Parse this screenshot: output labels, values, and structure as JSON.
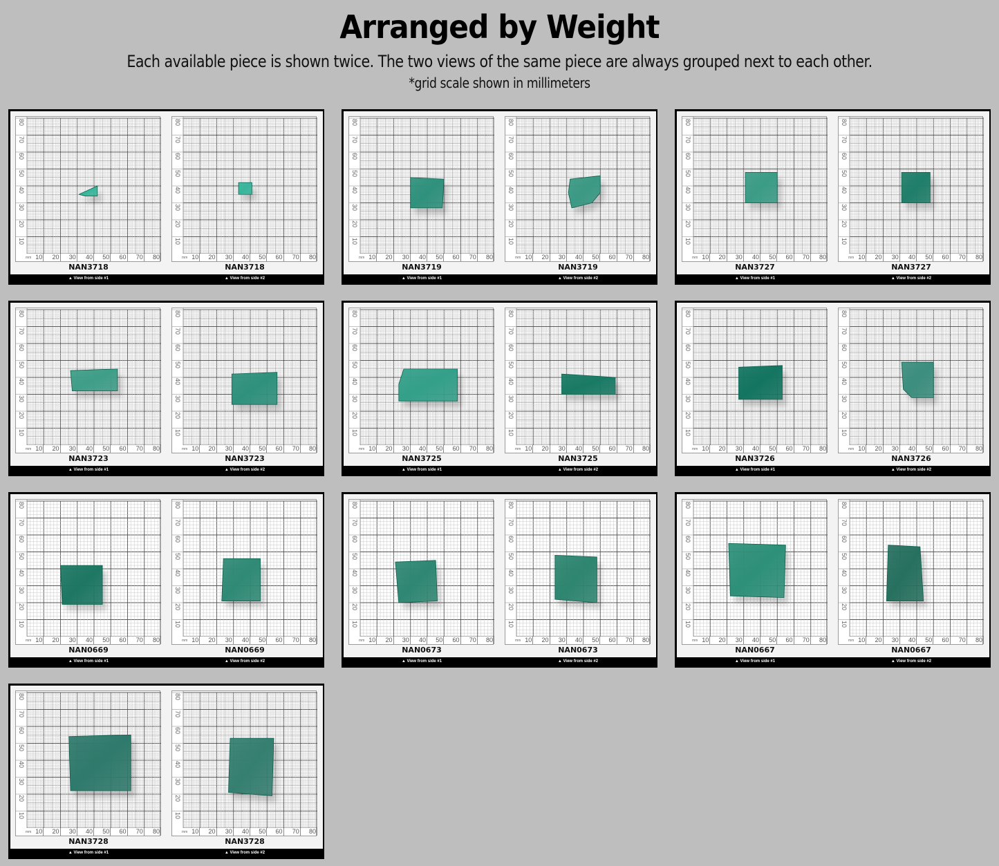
{
  "header": {
    "title": "Arranged by Weight",
    "subtitle": "Each available piece is shown twice. The two views of the same piece are always grouped next to each other.",
    "note": "*grid scale shown in millimeters"
  },
  "grid": {
    "unit_label": "mm",
    "x_ticks": [
      "10",
      "20",
      "30",
      "40",
      "50",
      "60",
      "70",
      "80"
    ],
    "y_ticks": [
      "80",
      "70",
      "60",
      "50",
      "40",
      "30",
      "20",
      "10"
    ]
  },
  "captions": {
    "side1": "▲ View from side #1",
    "side2": "▲ View from side #2"
  },
  "colors": {
    "background": "#bebebe",
    "panel_border": "#000000",
    "stone_light": "#3fa58f",
    "stone_mid": "#2a8c78",
    "stone_dark": "#14705d"
  },
  "pieces": [
    {
      "id": "NAN3718",
      "fine_grid": true,
      "view1": {
        "poly": [
          [
            31,
            35
          ],
          [
            42,
            40
          ],
          [
            42,
            34
          ],
          [
            35,
            34
          ]
        ],
        "color": "#3ab59c"
      },
      "view2": {
        "poly": [
          [
            33,
            42
          ],
          [
            41,
            42
          ],
          [
            41,
            35
          ],
          [
            33,
            35
          ]
        ],
        "color": "#3ab59c"
      }
    },
    {
      "id": "NAN3719",
      "fine_grid": true,
      "view1": {
        "poly": [
          [
            30,
            45
          ],
          [
            50,
            44
          ],
          [
            49,
            27
          ],
          [
            30,
            27
          ]
        ],
        "color": "#2f917c"
      },
      "view2": {
        "poly": [
          [
            32,
            44
          ],
          [
            50,
            46
          ],
          [
            50,
            36
          ],
          [
            45,
            30
          ],
          [
            33,
            27
          ],
          [
            31,
            36
          ]
        ],
        "color": "#3b9984"
      }
    },
    {
      "id": "NAN3727",
      "fine_grid": true,
      "view1": {
        "poly": [
          [
            31,
            48
          ],
          [
            50,
            48
          ],
          [
            50,
            30
          ],
          [
            31,
            30
          ]
        ],
        "color": "#3b9c86"
      },
      "view2": {
        "poly": [
          [
            31,
            48
          ],
          [
            48,
            48
          ],
          [
            48,
            30
          ],
          [
            31,
            30
          ]
        ],
        "color": "#1f7e69"
      }
    },
    {
      "id": "NAN3723",
      "fine_grid": true,
      "view1": {
        "poly": [
          [
            26,
            44
          ],
          [
            54,
            45
          ],
          [
            54,
            32
          ],
          [
            27,
            32
          ]
        ],
        "color": "#3f9e88"
      },
      "view2": {
        "poly": [
          [
            29,
            42
          ],
          [
            56,
            43
          ],
          [
            56,
            24
          ],
          [
            29,
            24
          ]
        ],
        "color": "#2f917c"
      }
    },
    {
      "id": "NAN3725",
      "fine_grid": true,
      "view1": {
        "poly": [
          [
            26,
            45
          ],
          [
            58,
            45
          ],
          [
            58,
            26
          ],
          [
            23,
            26
          ],
          [
            23,
            36
          ]
        ],
        "color": "#34a08a"
      },
      "view2": {
        "poly": [
          [
            27,
            42
          ],
          [
            59,
            40
          ],
          [
            59,
            30
          ],
          [
            27,
            30
          ]
        ],
        "color": "#197a64"
      }
    },
    {
      "id": "NAN3726",
      "fine_grid": true,
      "view1": {
        "poly": [
          [
            27,
            46
          ],
          [
            53,
            47
          ],
          [
            53,
            27
          ],
          [
            27,
            27
          ]
        ],
        "color": "#137560"
      },
      "view2": {
        "poly": [
          [
            31,
            49
          ],
          [
            50,
            49
          ],
          [
            50,
            28
          ],
          [
            37,
            28
          ],
          [
            32,
            33
          ]
        ],
        "color": "#3c8e7e"
      }
    },
    {
      "id": "NAN0669",
      "fine_grid": false,
      "view1": {
        "poly": [
          [
            20,
            42
          ],
          [
            45,
            42
          ],
          [
            45,
            19
          ],
          [
            21,
            19
          ]
        ],
        "color": "#1d7763"
      },
      "view2": {
        "poly": [
          [
            24,
            46
          ],
          [
            46,
            46
          ],
          [
            46,
            21
          ],
          [
            23,
            21
          ]
        ],
        "color": "#2f8a75"
      }
    },
    {
      "id": "NAN0673",
      "fine_grid": false,
      "view1": {
        "poly": [
          [
            21,
            44
          ],
          [
            45,
            45
          ],
          [
            46,
            21
          ],
          [
            23,
            20
          ]
        ],
        "color": "#2f8773"
      },
      "view2": {
        "poly": [
          [
            23,
            48
          ],
          [
            48,
            47
          ],
          [
            48,
            20
          ],
          [
            23,
            22
          ]
        ],
        "color": "#2e8570"
      }
    },
    {
      "id": "NAN0667",
      "fine_grid": false,
      "view1": {
        "poly": [
          [
            21,
            55
          ],
          [
            55,
            54
          ],
          [
            54,
            23
          ],
          [
            22,
            24
          ]
        ],
        "color": "#2e9079"
      },
      "view2": {
        "poly": [
          [
            23,
            54
          ],
          [
            42,
            53
          ],
          [
            44,
            21
          ],
          [
            22,
            21
          ]
        ],
        "color": "#27705f"
      }
    },
    {
      "id": "NAN3728",
      "fine_grid": true,
      "view1": {
        "poly": [
          [
            25,
            54
          ],
          [
            62,
            55
          ],
          [
            62,
            22
          ],
          [
            26,
            22
          ]
        ],
        "color": "#2f7a6c"
      },
      "view2": {
        "poly": [
          [
            28,
            53
          ],
          [
            54,
            53
          ],
          [
            53,
            19
          ],
          [
            27,
            21
          ]
        ],
        "color": "#357f71"
      }
    }
  ]
}
